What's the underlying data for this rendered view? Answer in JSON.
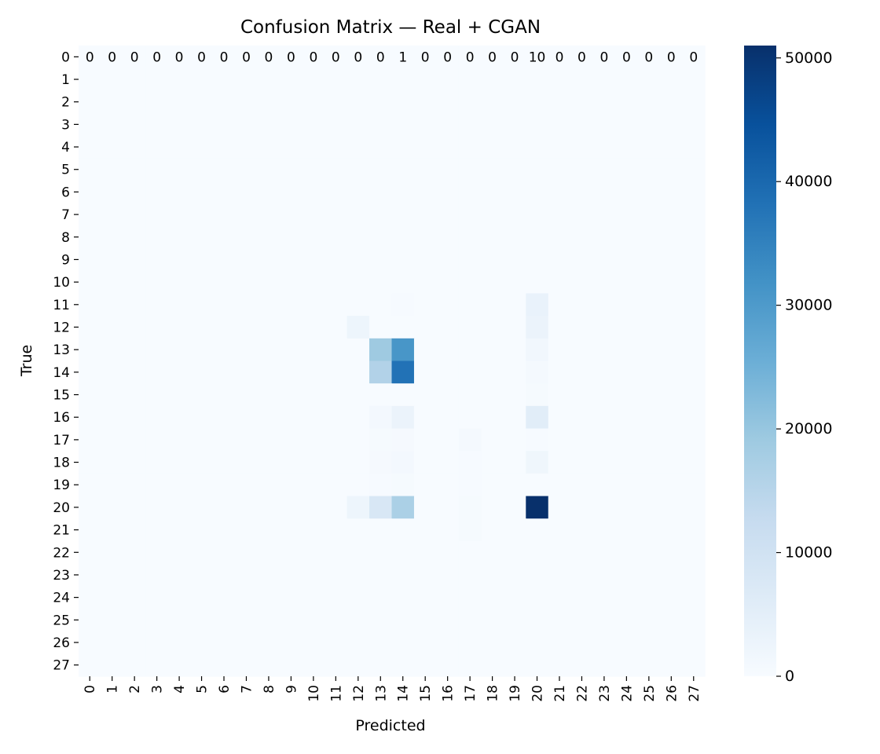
{
  "chart_data": {
    "type": "heatmap",
    "title": "Confusion Matrix — Real + CGAN",
    "xlabel": "Predicted",
    "ylabel": "True",
    "x_categories": [
      "0",
      "1",
      "2",
      "3",
      "4",
      "5",
      "6",
      "7",
      "8",
      "9",
      "10",
      "11",
      "12",
      "13",
      "14",
      "15",
      "16",
      "17",
      "18",
      "19",
      "20",
      "21",
      "22",
      "23",
      "24",
      "25",
      "26",
      "27"
    ],
    "y_categories": [
      "0",
      "1",
      "2",
      "3",
      "4",
      "5",
      "6",
      "7",
      "8",
      "9",
      "10",
      "11",
      "12",
      "13",
      "14",
      "15",
      "16",
      "17",
      "18",
      "19",
      "20",
      "21",
      "22",
      "23",
      "24",
      "25",
      "26",
      "27"
    ],
    "values": [
      [
        0,
        0,
        0,
        0,
        0,
        0,
        0,
        0,
        0,
        0,
        0,
        0,
        0,
        0,
        1,
        0,
        0,
        0,
        0,
        0,
        10,
        0,
        0,
        0,
        0,
        0,
        0,
        0
      ],
      [
        0,
        0,
        0,
        0,
        0,
        0,
        0,
        0,
        0,
        0,
        0,
        0,
        0,
        0,
        0,
        0,
        0,
        0,
        0,
        0,
        0,
        0,
        0,
        0,
        0,
        0,
        0,
        0
      ],
      [
        0,
        0,
        0,
        0,
        0,
        0,
        0,
        0,
        0,
        0,
        0,
        0,
        0,
        0,
        0,
        0,
        0,
        0,
        0,
        0,
        0,
        0,
        0,
        0,
        0,
        0,
        0,
        0
      ],
      [
        0,
        0,
        0,
        0,
        0,
        0,
        0,
        0,
        0,
        0,
        0,
        0,
        0,
        0,
        0,
        0,
        0,
        0,
        0,
        0,
        0,
        0,
        0,
        0,
        0,
        0,
        0,
        0
      ],
      [
        0,
        0,
        0,
        0,
        0,
        0,
        0,
        0,
        0,
        0,
        0,
        0,
        0,
        0,
        0,
        0,
        0,
        0,
        0,
        0,
        0,
        0,
        0,
        0,
        0,
        0,
        0,
        0
      ],
      [
        0,
        0,
        0,
        0,
        0,
        0,
        0,
        0,
        0,
        0,
        0,
        0,
        0,
        0,
        0,
        0,
        0,
        0,
        0,
        0,
        0,
        0,
        0,
        0,
        0,
        0,
        0,
        0
      ],
      [
        0,
        0,
        0,
        0,
        0,
        0,
        0,
        0,
        0,
        0,
        0,
        0,
        0,
        0,
        0,
        0,
        0,
        0,
        0,
        0,
        0,
        0,
        0,
        0,
        0,
        0,
        0,
        0
      ],
      [
        0,
        0,
        0,
        0,
        0,
        0,
        0,
        0,
        0,
        0,
        0,
        0,
        0,
        0,
        0,
        0,
        0,
        0,
        0,
        0,
        0,
        0,
        0,
        0,
        0,
        0,
        0,
        0
      ],
      [
        0,
        0,
        0,
        0,
        0,
        0,
        0,
        0,
        0,
        0,
        0,
        0,
        0,
        0,
        0,
        0,
        0,
        0,
        0,
        0,
        0,
        0,
        0,
        0,
        0,
        0,
        0,
        0
      ],
      [
        0,
        0,
        0,
        0,
        0,
        0,
        0,
        0,
        0,
        0,
        0,
        0,
        0,
        0,
        0,
        0,
        0,
        0,
        0,
        0,
        0,
        0,
        0,
        0,
        0,
        0,
        0,
        0
      ],
      [
        0,
        0,
        0,
        0,
        0,
        0,
        0,
        0,
        0,
        0,
        0,
        0,
        0,
        0,
        0,
        0,
        0,
        0,
        0,
        0,
        0,
        0,
        0,
        0,
        0,
        0,
        0,
        0
      ],
      [
        0,
        0,
        0,
        0,
        0,
        0,
        0,
        0,
        0,
        0,
        0,
        0,
        0,
        0,
        300,
        0,
        0,
        0,
        0,
        0,
        3500,
        0,
        0,
        0,
        0,
        0,
        0,
        0
      ],
      [
        0,
        0,
        0,
        0,
        0,
        0,
        0,
        0,
        0,
        0,
        0,
        0,
        2500,
        0,
        0,
        0,
        0,
        0,
        0,
        0,
        3000,
        0,
        0,
        0,
        0,
        0,
        0,
        0
      ],
      [
        0,
        0,
        0,
        0,
        0,
        0,
        0,
        0,
        0,
        0,
        0,
        0,
        0,
        19000,
        31000,
        0,
        0,
        0,
        0,
        0,
        1500,
        0,
        0,
        0,
        0,
        0,
        0,
        0
      ],
      [
        0,
        0,
        0,
        0,
        0,
        0,
        0,
        0,
        0,
        0,
        0,
        0,
        0,
        16000,
        38000,
        0,
        0,
        0,
        0,
        0,
        800,
        0,
        0,
        0,
        0,
        0,
        0,
        0
      ],
      [
        0,
        0,
        0,
        0,
        0,
        0,
        0,
        0,
        0,
        0,
        0,
        0,
        0,
        0,
        0,
        0,
        0,
        0,
        0,
        0,
        500,
        0,
        0,
        0,
        0,
        0,
        0,
        0
      ],
      [
        0,
        0,
        0,
        0,
        0,
        0,
        0,
        0,
        0,
        0,
        0,
        0,
        0,
        1000,
        3000,
        0,
        0,
        0,
        0,
        0,
        5500,
        0,
        0,
        0,
        0,
        0,
        0,
        0
      ],
      [
        0,
        0,
        0,
        0,
        0,
        0,
        0,
        0,
        0,
        0,
        0,
        0,
        0,
        500,
        600,
        0,
        0,
        800,
        0,
        0,
        300,
        0,
        0,
        0,
        0,
        0,
        0,
        0
      ],
      [
        0,
        0,
        0,
        0,
        0,
        0,
        0,
        0,
        0,
        0,
        0,
        0,
        0,
        600,
        1000,
        0,
        0,
        200,
        0,
        0,
        2000,
        0,
        0,
        0,
        0,
        0,
        0,
        0
      ],
      [
        0,
        0,
        0,
        0,
        0,
        0,
        0,
        0,
        0,
        0,
        0,
        0,
        0,
        300,
        400,
        0,
        0,
        300,
        0,
        0,
        0,
        0,
        0,
        0,
        0,
        0,
        0,
        0
      ],
      [
        0,
        0,
        0,
        0,
        0,
        0,
        0,
        0,
        0,
        0,
        0,
        0,
        2500,
        8000,
        17000,
        0,
        0,
        500,
        0,
        0,
        51000,
        0,
        0,
        0,
        0,
        0,
        0,
        0
      ],
      [
        0,
        0,
        0,
        0,
        0,
        0,
        0,
        0,
        0,
        0,
        0,
        0,
        0,
        0,
        0,
        0,
        0,
        400,
        0,
        0,
        0,
        0,
        0,
        0,
        0,
        0,
        0,
        0
      ],
      [
        0,
        0,
        0,
        0,
        0,
        0,
        0,
        0,
        0,
        0,
        0,
        0,
        0,
        0,
        0,
        0,
        0,
        0,
        0,
        0,
        0,
        0,
        0,
        0,
        0,
        0,
        0,
        0
      ],
      [
        0,
        0,
        0,
        0,
        0,
        0,
        0,
        0,
        0,
        0,
        0,
        0,
        0,
        0,
        0,
        0,
        0,
        0,
        0,
        0,
        0,
        0,
        0,
        0,
        0,
        0,
        0,
        0
      ],
      [
        0,
        0,
        0,
        0,
        0,
        0,
        0,
        0,
        0,
        0,
        0,
        0,
        0,
        0,
        0,
        0,
        0,
        0,
        0,
        0,
        0,
        0,
        0,
        0,
        0,
        0,
        0,
        0
      ],
      [
        0,
        0,
        0,
        0,
        0,
        0,
        0,
        0,
        0,
        0,
        0,
        0,
        0,
        0,
        0,
        0,
        0,
        0,
        0,
        0,
        0,
        0,
        0,
        0,
        0,
        0,
        0,
        0
      ],
      [
        0,
        0,
        0,
        0,
        0,
        0,
        0,
        0,
        0,
        0,
        0,
        0,
        0,
        0,
        0,
        0,
        0,
        0,
        0,
        0,
        0,
        0,
        0,
        0,
        0,
        0,
        0,
        0
      ],
      [
        0,
        0,
        0,
        0,
        0,
        0,
        0,
        0,
        0,
        0,
        0,
        0,
        0,
        0,
        0,
        0,
        0,
        0,
        0,
        0,
        0,
        0,
        0,
        0,
        0,
        0,
        0,
        0
      ]
    ],
    "annotated_rows": [
      0
    ],
    "colormap": "Blues",
    "colormap_stops": [
      "#f7fbff",
      "#deebf7",
      "#c6dbef",
      "#9ecae1",
      "#6baed6",
      "#4292c6",
      "#2171b5",
      "#08519c",
      "#08306b"
    ],
    "color_range": [
      0,
      51000
    ],
    "colorbar_ticks": [
      0,
      10000,
      20000,
      30000,
      40000,
      50000
    ],
    "grid": false,
    "legend": "colorbar-right"
  }
}
